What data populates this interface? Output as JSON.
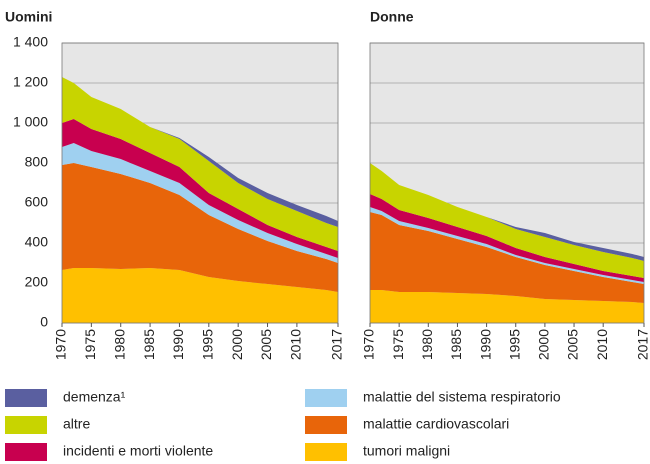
{
  "chart_data": [
    {
      "type": "stacked_area",
      "title": "Uomini",
      "x": [
        1970,
        1972,
        1975,
        1980,
        1985,
        1990,
        1995,
        2000,
        2005,
        2010,
        2015,
        2017
      ],
      "xlim": [
        1970,
        2017
      ],
      "xticks": [
        1970,
        1975,
        1980,
        1985,
        1990,
        1995,
        2000,
        2005,
        2010,
        2017
      ],
      "ylim": [
        0,
        1400
      ],
      "yticks": [
        0,
        200,
        400,
        600,
        800,
        {
          "value": 1000,
          "label": "1 000"
        },
        {
          "value": 1200,
          "label": "1 200"
        },
        {
          "value": 1400,
          "label": "1 400"
        }
      ],
      "grid": true,
      "series": [
        {
          "name": "tumori maligni",
          "color": "#ffc000",
          "values": [
            265,
            275,
            275,
            270,
            275,
            265,
            230,
            210,
            195,
            180,
            165,
            155
          ]
        },
        {
          "name": "malattie cardiovascolari",
          "color": "#e8650a",
          "values": [
            525,
            525,
            505,
            475,
            425,
            375,
            310,
            260,
            215,
            180,
            155,
            145
          ]
        },
        {
          "name": "malattie del sistema respiratorio",
          "color": "#9fd0f0",
          "values": [
            90,
            100,
            80,
            75,
            60,
            60,
            50,
            45,
            40,
            35,
            25,
            25
          ]
        },
        {
          "name": "incidenti e morti violente",
          "color": "#c8004f",
          "values": [
            120,
            120,
            110,
            100,
            90,
            80,
            60,
            55,
            40,
            35,
            35,
            35
          ]
        },
        {
          "name": "altre",
          "color": "#c8d400",
          "values": [
            230,
            180,
            160,
            150,
            130,
            140,
            160,
            130,
            130,
            130,
            120,
            120
          ]
        },
        {
          "name": "demenza¹",
          "color": "#5a5fa0",
          "values": [
            0,
            0,
            0,
            0,
            0,
            5,
            20,
            25,
            30,
            30,
            35,
            30
          ]
        }
      ]
    },
    {
      "type": "stacked_area",
      "title": "Donne",
      "x": [
        1970,
        1972,
        1975,
        1980,
        1985,
        1990,
        1995,
        2000,
        2005,
        2010,
        2015,
        2017
      ],
      "xlim": [
        1970,
        2017
      ],
      "xticks": [
        1970,
        1975,
        1980,
        1985,
        1990,
        1995,
        2000,
        2005,
        2010,
        2017
      ],
      "ylim": [
        0,
        1400
      ],
      "yticks": [
        0,
        200,
        400,
        600,
        800,
        1000,
        1200,
        1400
      ],
      "grid": true,
      "series": [
        {
          "values": [
            165,
            165,
            155,
            155,
            150,
            145,
            135,
            120,
            115,
            110,
            105,
            100
          ]
        },
        {
          "values": [
            390,
            375,
            335,
            305,
            270,
            235,
            195,
            170,
            145,
            120,
            100,
            95
          ]
        },
        {
          "values": [
            25,
            20,
            20,
            15,
            15,
            15,
            10,
            10,
            10,
            10,
            10,
            10
          ]
        },
        {
          "values": [
            65,
            60,
            55,
            50,
            45,
            40,
            35,
            30,
            25,
            20,
            20,
            20
          ]
        },
        {
          "values": [
            155,
            140,
            125,
            115,
            100,
            95,
            95,
            100,
            95,
            95,
            90,
            85
          ]
        },
        {
          "values": [
            0,
            0,
            0,
            0,
            0,
            0,
            10,
            20,
            15,
            20,
            20,
            20
          ]
        }
      ]
    }
  ]
}
